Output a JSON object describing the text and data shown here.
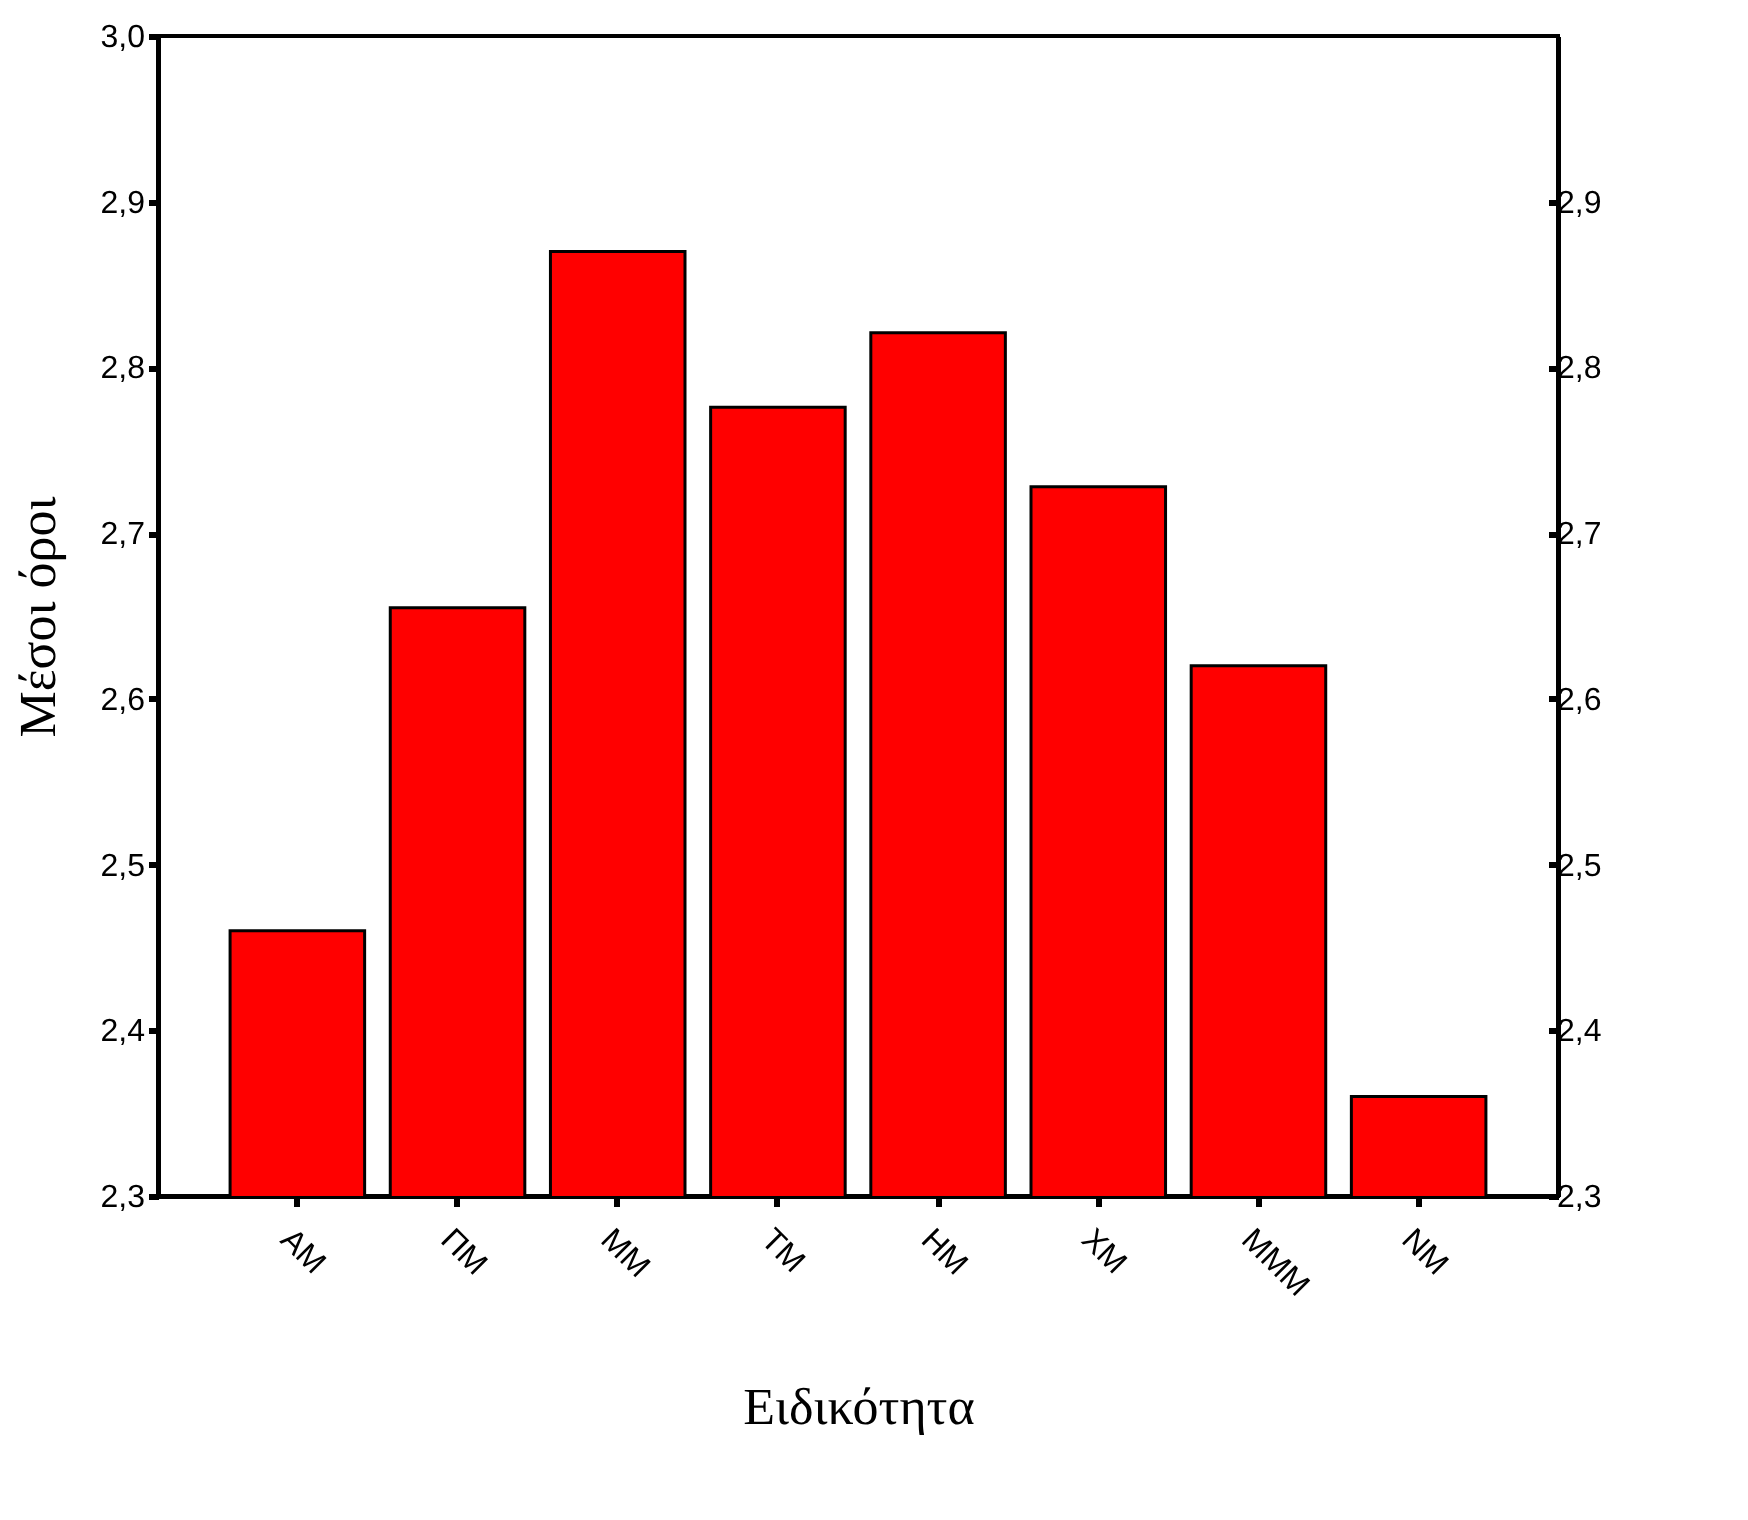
{
  "chart_data": {
    "type": "bar",
    "xlabel": "Ειδικότητα",
    "ylabel": "Μέσοι όροι",
    "categories": [
      "ΑΜ",
      "ΠΜ",
      "ΜΜ",
      "ΤΜ",
      "ΗΜ",
      "ΧΜ",
      "ΜΜΜ",
      "ΝΜ"
    ],
    "values": [
      2.46,
      2.655,
      2.87,
      2.776,
      2.821,
      2.728,
      2.62,
      2.36
    ],
    "color": "#ff0000",
    "ylim": [
      2.3,
      3.0
    ],
    "yticks": [
      {
        "value": 2.3,
        "label": "2,3"
      },
      {
        "value": 2.4,
        "label": "2,4"
      },
      {
        "value": 2.5,
        "label": "2,5"
      },
      {
        "value": 2.6,
        "label": "2,6"
      },
      {
        "value": 2.7,
        "label": "2,7"
      },
      {
        "value": 2.8,
        "label": "2,8"
      },
      {
        "value": 2.9,
        "label": "2,9"
      },
      {
        "value": 3.0,
        "label": "3,0"
      }
    ],
    "y2lim": [
      2.3,
      3.0
    ],
    "y2ticks": [
      {
        "value": 2.3,
        "label": "2,3"
      },
      {
        "value": 2.4,
        "label": "2,4"
      },
      {
        "value": 2.5,
        "label": "2,5"
      },
      {
        "value": 2.6,
        "label": "2,6"
      },
      {
        "value": 2.7,
        "label": "2,7"
      },
      {
        "value": 2.8,
        "label": "2,8"
      },
      {
        "value": 2.9,
        "label": "2,9"
      }
    ],
    "grid": false
  }
}
